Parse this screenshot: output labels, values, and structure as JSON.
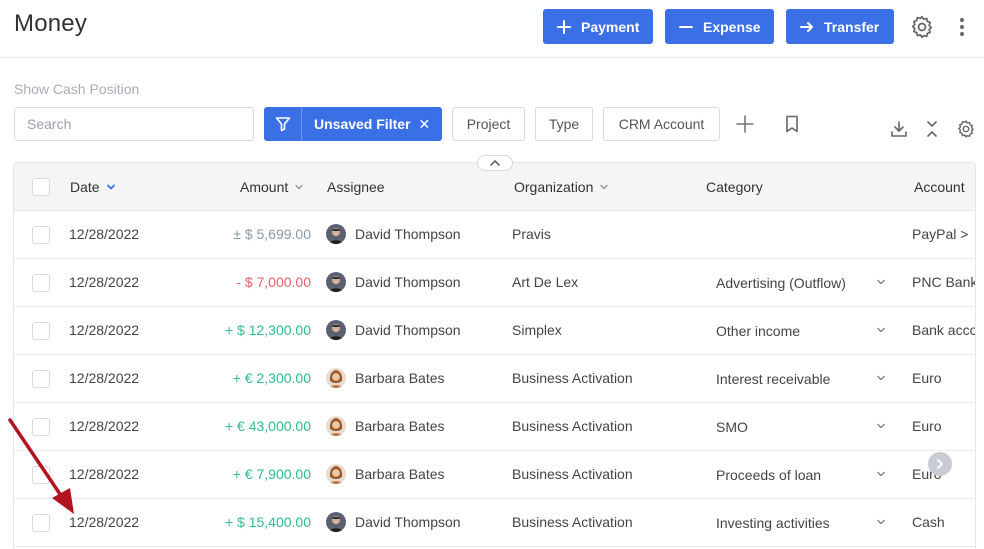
{
  "header": {
    "title": "Money",
    "buttons": {
      "payment": "Payment",
      "expense": "Expense",
      "transfer": "Transfer"
    }
  },
  "toolbar": {
    "show_cash_position": "Show Cash Position",
    "search_placeholder": "Search",
    "active_filter": "Unsaved Filter",
    "chips": {
      "project": "Project",
      "type": "Type",
      "crm_account": "CRM Account"
    }
  },
  "table": {
    "columns": {
      "date": "Date",
      "amount": "Amount",
      "assignee": "Assignee",
      "organization": "Organization",
      "category": "Category",
      "account": "Account"
    },
    "rows": [
      {
        "date": "12/28/2022",
        "amount": "± $ 5,699.00",
        "amount_kind": "neutral",
        "assignee": "David Thompson",
        "avatar": "male",
        "organization": "Pravis",
        "category": "",
        "account": "PayPal >"
      },
      {
        "date": "12/28/2022",
        "amount": "- $ 7,000.00",
        "amount_kind": "negative",
        "assignee": "David Thompson",
        "avatar": "male",
        "organization": "Art De Lex",
        "category": "Advertising (Outflow)",
        "account": "PNC Bank"
      },
      {
        "date": "12/28/2022",
        "amount": "+ $ 12,300.00",
        "amount_kind": "positive",
        "assignee": "David Thompson",
        "avatar": "male",
        "organization": "Simplex",
        "category": "Other income",
        "account": "Bank account"
      },
      {
        "date": "12/28/2022",
        "amount": "+ € 2,300.00",
        "amount_kind": "positive",
        "assignee": "Barbara Bates",
        "avatar": "female",
        "organization": "Business Activation",
        "category": "Interest receivable",
        "account": "Euro"
      },
      {
        "date": "12/28/2022",
        "amount": "+ € 43,000.00",
        "amount_kind": "positive",
        "assignee": "Barbara Bates",
        "avatar": "female",
        "organization": "Business Activation",
        "category": "SMO",
        "account": "Euro"
      },
      {
        "date": "12/28/2022",
        "amount": "+ € 7,900.00",
        "amount_kind": "positive",
        "assignee": "Barbara Bates",
        "avatar": "female",
        "organization": "Business Activation",
        "category": "Proceeds of loan",
        "account": "Euro"
      },
      {
        "date": "12/28/2022",
        "amount": "+ $ 15,400.00",
        "amount_kind": "positive",
        "assignee": "David Thompson",
        "avatar": "male",
        "organization": "Business Activation",
        "category": "Investing activities",
        "account": "Cash"
      }
    ]
  },
  "colors": {
    "primary": "#3b6fe6",
    "positive": "#2ebd8f",
    "negative": "#e8606a",
    "neutral": "#8a96a8",
    "annotation_arrow": "#b3121f"
  }
}
